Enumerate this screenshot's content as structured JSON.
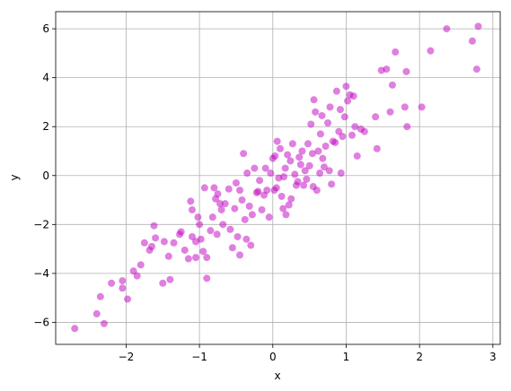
{
  "chart_data": {
    "type": "scatter",
    "x_label": "x",
    "y_label": "y",
    "color": "#bf00bf",
    "grid": true,
    "xlim": [
      -2.96,
      3.1
    ],
    "ylim": [
      -6.9,
      6.7
    ],
    "xticks": [
      {
        "value": -2,
        "label": "−2"
      },
      {
        "value": -1,
        "label": "−1"
      },
      0,
      1,
      2,
      3
    ],
    "yticks": [
      {
        "value": -6,
        "label": "−6"
      },
      {
        "value": -4,
        "label": "−4"
      },
      {
        "value": -2,
        "label": "−2"
      },
      0,
      2,
      4,
      6
    ],
    "x": [
      -2.7,
      -2.4,
      -2.35,
      -2.3,
      -2.2,
      -2.05,
      -2.05,
      -1.98,
      -1.9,
      -1.85,
      -1.8,
      -1.75,
      -1.68,
      -1.65,
      -1.62,
      -1.6,
      -1.5,
      -1.48,
      -1.42,
      -1.4,
      -1.35,
      -1.27,
      -1.25,
      -1.2,
      -1.15,
      -1.12,
      -1.1,
      -1.1,
      -1.05,
      -1.05,
      -1.02,
      -1.0,
      -0.98,
      -0.95,
      -0.93,
      -0.9,
      -0.9,
      -0.85,
      -0.82,
      -0.8,
      -0.78,
      -0.76,
      -0.75,
      -0.72,
      -0.7,
      -0.68,
      -0.65,
      -0.6,
      -0.58,
      -0.55,
      -0.52,
      -0.5,
      -0.48,
      -0.45,
      -0.45,
      -0.42,
      -0.4,
      -0.38,
      -0.36,
      -0.35,
      -0.32,
      -0.3,
      -0.28,
      -0.25,
      -0.22,
      -0.2,
      -0.18,
      -0.15,
      -0.12,
      -0.1,
      -0.08,
      -0.05,
      -0.03,
      0.0,
      0.02,
      0.03,
      0.05,
      0.06,
      0.08,
      0.1,
      0.12,
      0.14,
      0.15,
      0.17,
      0.18,
      0.2,
      0.22,
      0.24,
      0.25,
      0.27,
      0.3,
      0.32,
      0.34,
      0.36,
      0.38,
      0.4,
      0.42,
      0.44,
      0.46,
      0.48,
      0.5,
      0.52,
      0.54,
      0.55,
      0.56,
      0.58,
      0.6,
      0.62,
      0.64,
      0.65,
      0.67,
      0.68,
      0.7,
      0.72,
      0.75,
      0.77,
      0.78,
      0.8,
      0.82,
      0.85,
      0.87,
      0.9,
      0.92,
      0.93,
      0.95,
      0.98,
      1.0,
      1.02,
      1.05,
      1.08,
      1.1,
      1.12,
      1.15,
      1.2,
      1.25,
      1.4,
      1.42,
      1.48,
      1.55,
      1.6,
      1.63,
      1.67,
      1.8,
      1.82,
      1.83,
      2.03,
      2.15,
      2.37,
      2.72,
      2.78,
      2.8
    ],
    "values": [
      -6.25,
      -5.65,
      -4.95,
      -6.05,
      -4.4,
      -4.3,
      -4.6,
      -5.05,
      -3.9,
      -4.1,
      -3.65,
      -2.75,
      -3.05,
      -2.9,
      -2.05,
      -2.55,
      -4.4,
      -2.7,
      -3.3,
      -4.25,
      -2.75,
      -2.4,
      -2.3,
      -3.05,
      -3.4,
      -1.05,
      -1.4,
      -2.5,
      -2.7,
      -3.35,
      -1.7,
      -2.0,
      -2.6,
      -3.1,
      -0.5,
      -3.35,
      -4.2,
      -2.25,
      -1.7,
      -0.5,
      -0.95,
      -2.4,
      -0.75,
      -1.15,
      -1.4,
      -2.0,
      -1.15,
      -0.55,
      -2.2,
      -2.95,
      -1.35,
      -0.3,
      -2.5,
      -0.6,
      -3.25,
      -1.0,
      0.9,
      -1.8,
      -2.6,
      0.1,
      -1.25,
      -2.85,
      -1.6,
      0.3,
      -0.7,
      -0.65,
      -0.2,
      -1.4,
      -0.8,
      0.3,
      -0.6,
      -1.7,
      0.1,
      0.7,
      -0.6,
      0.8,
      -0.5,
      1.4,
      -0.1,
      1.1,
      -0.85,
      -1.35,
      -0.05,
      0.3,
      -1.6,
      0.85,
      -1.2,
      0.6,
      -0.95,
      1.3,
      0.05,
      -0.4,
      -0.25,
      0.75,
      0.45,
      1.0,
      -0.4,
      0.2,
      -0.15,
      1.3,
      0.4,
      2.1,
      0.9,
      -0.45,
      3.1,
      2.6,
      -0.6,
      1.0,
      0.1,
      1.7,
      2.45,
      0.7,
      0.35,
      1.2,
      2.15,
      0.2,
      2.8,
      -0.35,
      1.4,
      1.35,
      3.45,
      1.8,
      2.7,
      0.1,
      1.6,
      2.4,
      3.65,
      3.05,
      3.3,
      1.65,
      3.25,
      2.0,
      0.8,
      1.9,
      1.8,
      2.4,
      1.1,
      4.3,
      4.35,
      2.6,
      3.7,
      5.05,
      2.8,
      4.25,
      2.0,
      2.8,
      5.1,
      6.0,
      5.5,
      4.35,
      6.1
    ]
  }
}
